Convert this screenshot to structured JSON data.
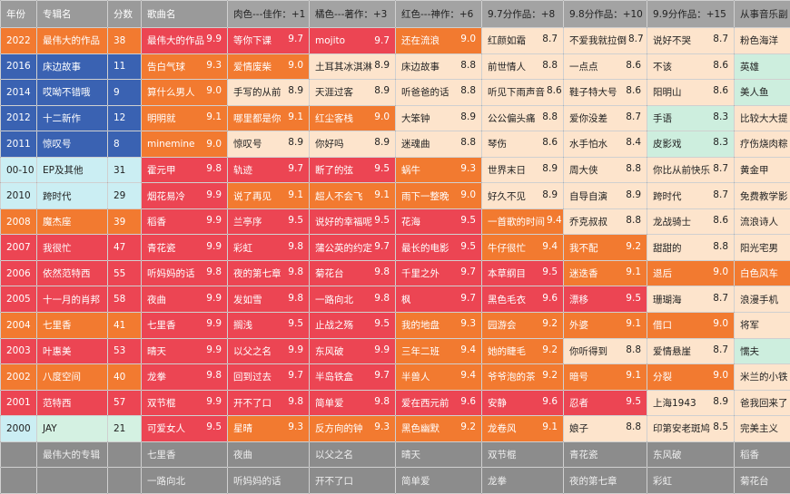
{
  "palette": {
    "red": "#ec4553",
    "orange": "#f27a30",
    "peach": "#fde4cc",
    "green": "#cdeede",
    "blue": "#3a62b2",
    "lightblue": "#cbeef3",
    "mint": "#d4f1e2",
    "gray": "#8c8c8c"
  },
  "headers": [
    "年份",
    "专辑名",
    "分数",
    "歌曲名",
    "肉色---佳作：+1",
    "橘色---著作：+3",
    "红色---神作：+6",
    "9.7分作品：+8",
    "9.8分作品：+10",
    "9.9分作品：+15",
    "从事音乐副"
  ],
  "rows": [
    {
      "year": "2022",
      "album": "最伟大的作品",
      "score": "38",
      "color": "orange",
      "cells": [
        [
          "最伟大的作品",
          "9.9",
          "red"
        ],
        [
          "等你下课",
          "9.7",
          "red"
        ],
        [
          "mojito",
          "9.7",
          "red"
        ],
        [
          "还在流浪",
          "9.0",
          "orange"
        ],
        [
          "红颜如霜",
          "8.7",
          "peach"
        ],
        [
          "不爱我就拉倒",
          "8.7",
          "peach"
        ],
        [
          "说好不哭",
          "8.7",
          "peach"
        ],
        [
          "粉色海洋",
          "",
          "peach"
        ]
      ]
    },
    {
      "year": "2016",
      "album": "床边故事",
      "score": "11",
      "color": "blue",
      "cells": [
        [
          "告白气球",
          "9.3",
          "orange"
        ],
        [
          "爱情废柴",
          "9.0",
          "orange"
        ],
        [
          "土耳其冰淇淋",
          "8.9",
          "peach"
        ],
        [
          "床边故事",
          "8.8",
          "peach"
        ],
        [
          "前世情人",
          "8.8",
          "peach"
        ],
        [
          "一点点",
          "8.6",
          "peach"
        ],
        [
          "不该",
          "8.6",
          "peach"
        ],
        [
          "英雄",
          "",
          "green"
        ]
      ]
    },
    {
      "year": "2014",
      "album": "哎呦不错哦",
      "score": "9",
      "color": "blue",
      "cells": [
        [
          "算什么男人",
          "9.0",
          "orange"
        ],
        [
          "手写的从前",
          "8.9",
          "peach"
        ],
        [
          "天涯过客",
          "8.9",
          "peach"
        ],
        [
          "听爸爸的话",
          "8.8",
          "peach"
        ],
        [
          "听见下雨声音",
          "8.6",
          "peach"
        ],
        [
          "鞋子特大号",
          "8.6",
          "peach"
        ],
        [
          "阳明山",
          "8.6",
          "peach"
        ],
        [
          "美人鱼",
          "",
          "green"
        ]
      ]
    },
    {
      "year": "2012",
      "album": "十二新作",
      "score": "12",
      "color": "blue",
      "cells": [
        [
          "明明就",
          "9.1",
          "orange"
        ],
        [
          "哪里都是你",
          "9.1",
          "orange"
        ],
        [
          "红尘客栈",
          "9.0",
          "orange"
        ],
        [
          "大笨钟",
          "8.9",
          "peach"
        ],
        [
          "公公偏头痛",
          "8.8",
          "peach"
        ],
        [
          "爱你没差",
          "8.7",
          "peach"
        ],
        [
          "手语",
          "8.3",
          "green"
        ],
        [
          "比较大大提",
          "",
          "peach"
        ]
      ]
    },
    {
      "year": "2011",
      "album": "惊叹号",
      "score": "8",
      "color": "blue",
      "cells": [
        [
          "minemine",
          "9.0",
          "orange"
        ],
        [
          "惊叹号",
          "8.9",
          "peach"
        ],
        [
          "你好吗",
          "8.9",
          "peach"
        ],
        [
          "迷魂曲",
          "8.8",
          "peach"
        ],
        [
          "琴伤",
          "8.6",
          "peach"
        ],
        [
          "水手怕水",
          "8.4",
          "peach"
        ],
        [
          "皮影戏",
          "8.3",
          "green"
        ],
        [
          "疗伤烧肉粽",
          "",
          "peach"
        ]
      ]
    },
    {
      "year": "00-10",
      "album": "EP及其他",
      "score": "31",
      "color": "lightblue",
      "cells": [
        [
          "霍元甲",
          "9.8",
          "red"
        ],
        [
          "轨迹",
          "9.7",
          "red"
        ],
        [
          "断了的弦",
          "9.5",
          "red"
        ],
        [
          "蜗牛",
          "9.3",
          "orange"
        ],
        [
          "世界末日",
          "8.9",
          "peach"
        ],
        [
          "周大侠",
          "8.8",
          "peach"
        ],
        [
          "你比从前快乐",
          "8.7",
          "peach"
        ],
        [
          "黄金甲",
          "",
          "peach"
        ]
      ]
    },
    {
      "year": "2010",
      "album": "跨时代",
      "score": "29",
      "color": "lightblue",
      "cells": [
        [
          "烟花易冷",
          "9.9",
          "red"
        ],
        [
          "说了再见",
          "9.1",
          "orange"
        ],
        [
          "超人不会飞",
          "9.1",
          "orange"
        ],
        [
          "雨下一整晚",
          "9.0",
          "orange"
        ],
        [
          "好久不见",
          "8.9",
          "peach"
        ],
        [
          "自导自演",
          "8.9",
          "peach"
        ],
        [
          "跨时代",
          "8.7",
          "peach"
        ],
        [
          "免费教学影",
          "",
          "peach"
        ]
      ]
    },
    {
      "year": "2008",
      "album": "魔杰座",
      "score": "39",
      "color": "orange",
      "cells": [
        [
          "稻香",
          "9.9",
          "red"
        ],
        [
          "兰亭序",
          "9.5",
          "red"
        ],
        [
          "说好的幸福呢",
          "9.5",
          "red"
        ],
        [
          "花海",
          "9.5",
          "red"
        ],
        [
          "一首歌的时间",
          "9.4",
          "orange"
        ],
        [
          "乔克叔叔",
          "8.8",
          "peach"
        ],
        [
          "龙战骑士",
          "8.6",
          "peach"
        ],
        [
          "流浪诗人",
          "",
          "peach"
        ]
      ]
    },
    {
      "year": "2007",
      "album": "我很忙",
      "score": "47",
      "color": "red",
      "cells": [
        [
          "青花瓷",
          "9.9",
          "red"
        ],
        [
          "彩虹",
          "9.8",
          "red"
        ],
        [
          "蒲公英的约定",
          "9.7",
          "red"
        ],
        [
          "最长的电影",
          "9.5",
          "red"
        ],
        [
          "牛仔很忙",
          "9.4",
          "orange"
        ],
        [
          "我不配",
          "9.2",
          "orange"
        ],
        [
          "甜甜的",
          "8.8",
          "peach"
        ],
        [
          "阳光宅男",
          "",
          "peach"
        ]
      ]
    },
    {
      "year": "2006",
      "album": "依然范特西",
      "score": "55",
      "color": "red",
      "cells": [
        [
          "听妈妈的话",
          "9.8",
          "red"
        ],
        [
          "夜的第七章",
          "9.8",
          "red"
        ],
        [
          "菊花台",
          "9.8",
          "red"
        ],
        [
          "千里之外",
          "9.7",
          "red"
        ],
        [
          "本草纲目",
          "9.5",
          "red"
        ],
        [
          "迷迭香",
          "9.1",
          "orange"
        ],
        [
          "退后",
          "9.0",
          "orange"
        ],
        [
          "白色风车",
          "",
          "orange"
        ]
      ]
    },
    {
      "year": "2005",
      "album": "十一月的肖邦",
      "score": "58",
      "color": "red",
      "cells": [
        [
          "夜曲",
          "9.9",
          "red"
        ],
        [
          "发如雪",
          "9.8",
          "red"
        ],
        [
          "一路向北",
          "9.8",
          "red"
        ],
        [
          "枫",
          "9.7",
          "red"
        ],
        [
          "黑色毛衣",
          "9.6",
          "red"
        ],
        [
          "漂移",
          "9.5",
          "red"
        ],
        [
          "珊瑚海",
          "8.7",
          "peach"
        ],
        [
          "浪漫手机",
          "",
          "peach"
        ]
      ]
    },
    {
      "year": "2004",
      "album": "七里香",
      "score": "41",
      "color": "orange",
      "cells": [
        [
          "七里香",
          "9.9",
          "red"
        ],
        [
          "搁浅",
          "9.5",
          "red"
        ],
        [
          "止战之殇",
          "9.5",
          "red"
        ],
        [
          "我的地盘",
          "9.3",
          "orange"
        ],
        [
          "园游会",
          "9.2",
          "orange"
        ],
        [
          "外婆",
          "9.1",
          "orange"
        ],
        [
          "借口",
          "9.0",
          "orange"
        ],
        [
          "将军",
          "",
          "peach"
        ]
      ]
    },
    {
      "year": "2003",
      "album": "叶惠美",
      "score": "53",
      "color": "red",
      "cells": [
        [
          "晴天",
          "9.9",
          "red"
        ],
        [
          "以父之名",
          "9.9",
          "red"
        ],
        [
          "东风破",
          "9.9",
          "red"
        ],
        [
          "三年二班",
          "9.4",
          "orange"
        ],
        [
          "她的睫毛",
          "9.2",
          "orange"
        ],
        [
          "你听得到",
          "8.8",
          "peach"
        ],
        [
          "爱情悬崖",
          "8.7",
          "peach"
        ],
        [
          "懦夫",
          "",
          "green"
        ]
      ]
    },
    {
      "year": "2002",
      "album": "八度空间",
      "score": "40",
      "color": "orange",
      "cells": [
        [
          "龙拳",
          "9.8",
          "red"
        ],
        [
          "回到过去",
          "9.7",
          "red"
        ],
        [
          "半岛铁盒",
          "9.7",
          "red"
        ],
        [
          "半兽人",
          "9.4",
          "orange"
        ],
        [
          "爷爷泡的茶",
          "9.2",
          "orange"
        ],
        [
          "暗号",
          "9.1",
          "orange"
        ],
        [
          "分裂",
          "9.0",
          "orange"
        ],
        [
          "米兰的小铁",
          "",
          "peach"
        ]
      ]
    },
    {
      "year": "2001",
      "album": "范特西",
      "score": "57",
      "color": "red",
      "cells": [
        [
          "双节棍",
          "9.9",
          "red"
        ],
        [
          "开不了口",
          "9.8",
          "red"
        ],
        [
          "简单爱",
          "9.8",
          "red"
        ],
        [
          "爱在西元前",
          "9.6",
          "red"
        ],
        [
          "安静",
          "9.6",
          "red"
        ],
        [
          "忍者",
          "9.5",
          "red"
        ],
        [
          "上海1943",
          "8.9",
          "peach"
        ],
        [
          "爸我回来了",
          "",
          "peach"
        ]
      ]
    },
    {
      "year": "2000",
      "album": "JAY",
      "score": "21",
      "color": "mint",
      "cells": [
        [
          "可爱女人",
          "9.5",
          "red"
        ],
        [
          "星晴",
          "9.3",
          "orange"
        ],
        [
          "反方向的钟",
          "9.3",
          "orange"
        ],
        [
          "黑色幽默",
          "9.2",
          "orange"
        ],
        [
          "龙卷风",
          "9.1",
          "orange"
        ],
        [
          "娘子",
          "8.8",
          "peach"
        ],
        [
          "印第安老斑鸠",
          "8.5",
          "peach"
        ],
        [
          "完美主义",
          "",
          "peach"
        ]
      ]
    }
  ],
  "footer": [
    [
      "",
      "最伟大的专辑",
      "",
      "七里香",
      "夜曲",
      "以父之名",
      "晴天",
      "双节棍",
      "青花瓷",
      "东风破",
      "稻香"
    ],
    [
      "",
      "",
      "",
      "一路向北",
      "听妈妈的话",
      "开不了口",
      "简单爱",
      "龙拳",
      "夜的第七章",
      "彩虹",
      "菊花台"
    ]
  ]
}
